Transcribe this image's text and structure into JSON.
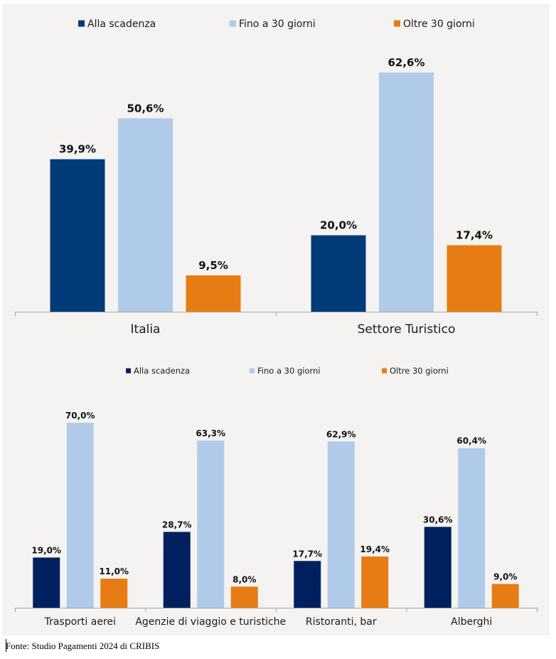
{
  "source": "Fonte: Studio Pagamenti 2024 di CRIBIS",
  "colors": {
    "background": "#f4f3f1",
    "axis": "#a6a6a6",
    "top_alla_scadenza": "#003a78",
    "bottom_alla_scadenza": "#00205f",
    "fino_30": "#b0cbea",
    "oltre_30": "#e87c14"
  },
  "chart_data": [
    {
      "type": "bar",
      "title": "",
      "xlabel": "",
      "ylabel": "",
      "ylim": [
        0,
        70
      ],
      "grid": false,
      "legend_position": "top",
      "categories": [
        "Italia",
        "Settore Turistico"
      ],
      "series": [
        {
          "name": "Alla scadenza",
          "values": [
            39.9,
            20.0
          ],
          "labels": [
            "39,9%",
            "20,0%"
          ]
        },
        {
          "name": "Fino a 30 giorni",
          "values": [
            50.6,
            62.6
          ],
          "labels": [
            "50,6%",
            "62,6%"
          ]
        },
        {
          "name": "Oltre 30 giorni",
          "values": [
            9.5,
            17.4
          ],
          "labels": [
            "9,5%",
            "17,4%"
          ]
        }
      ]
    },
    {
      "type": "bar",
      "title": "",
      "xlabel": "",
      "ylabel": "",
      "ylim": [
        0,
        80
      ],
      "grid": false,
      "legend_position": "top",
      "categories": [
        "Trasporti aerei",
        "Agenzie di viaggio e turistiche",
        "Ristoranti, bar",
        "Alberghi"
      ],
      "series": [
        {
          "name": "Alla scadenza",
          "values": [
            19.0,
            28.7,
            17.7,
            30.6
          ],
          "labels": [
            "19,0%",
            "28,7%",
            "17,7%",
            "30,6%"
          ]
        },
        {
          "name": "Fino a 30 giorni",
          "values": [
            70.0,
            63.3,
            62.9,
            60.4
          ],
          "labels": [
            "70,0%",
            "63,3%",
            "62,9%",
            "60,4%"
          ]
        },
        {
          "name": "Oltre 30 giorni",
          "values": [
            11.0,
            8.0,
            19.4,
            9.0
          ],
          "labels": [
            "11,0%",
            "8,0%",
            "19,4%",
            "9,0%"
          ]
        }
      ]
    }
  ]
}
